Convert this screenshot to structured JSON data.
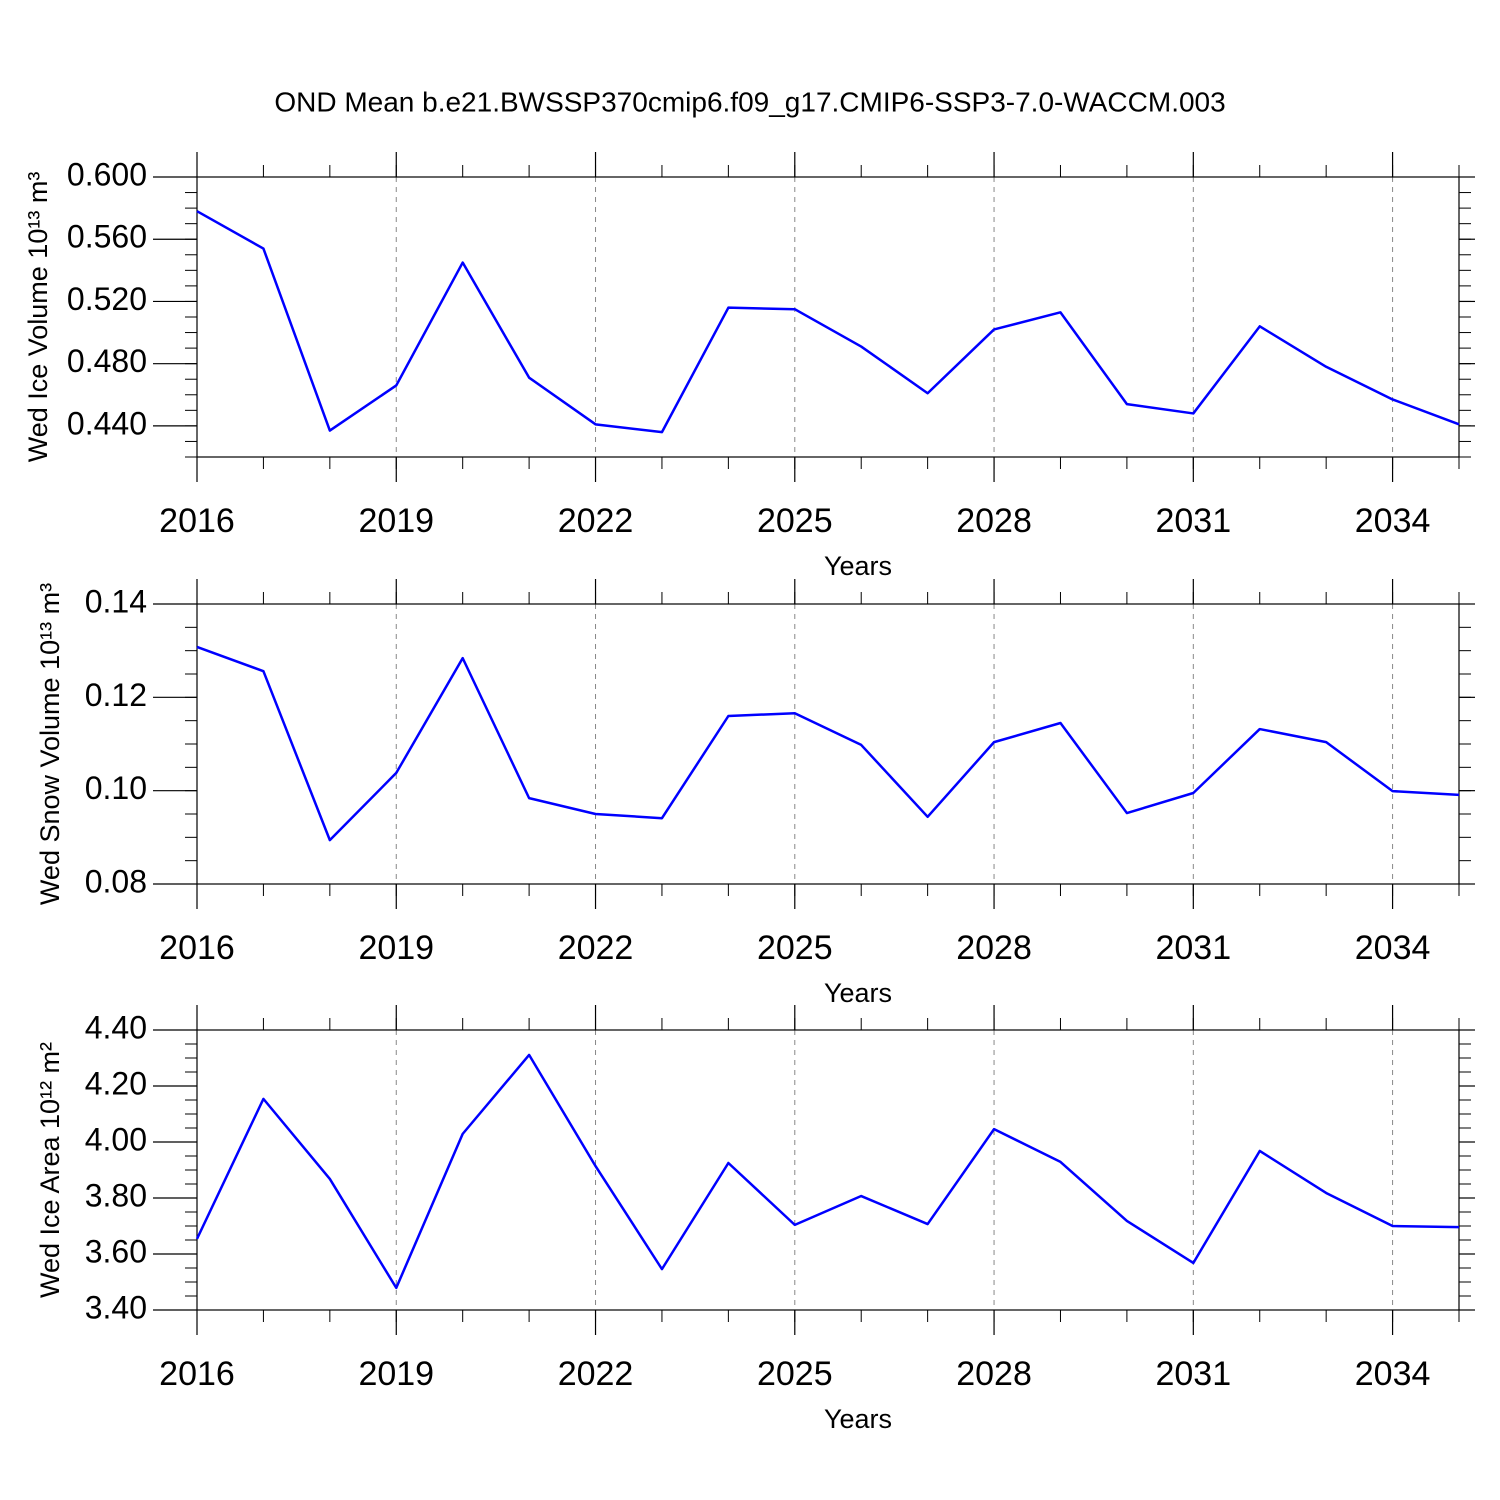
{
  "title": "OND Mean b.e21.BWSSP370cmip6.f09_g17.CMIP6-SSP3-7.0-WACCM.003",
  "chart_data": [
    {
      "type": "line",
      "ylabel": "Wed Ice Volume 10¹³ m³",
      "xlabel": "Years",
      "x": [
        2016,
        2017,
        2018,
        2019,
        2020,
        2021,
        2022,
        2023,
        2024,
        2025,
        2026,
        2027,
        2028,
        2029,
        2030,
        2031,
        2032,
        2033,
        2034,
        2035
      ],
      "series": [
        {
          "color": "#0000ff",
          "values": [
            0.578,
            0.554,
            0.437,
            0.466,
            0.545,
            0.471,
            0.441,
            0.436,
            0.516,
            0.515,
            0.491,
            0.461,
            0.502,
            0.513,
            0.454,
            0.448,
            0.504,
            0.478,
            0.457,
            0.441
          ]
        }
      ],
      "xlim": [
        2016,
        2035
      ],
      "xticks": [
        2016,
        2019,
        2022,
        2025,
        2028,
        2031,
        2034
      ],
      "ylim": [
        0.42,
        0.6
      ],
      "yticks": [
        {
          "value": 0.44,
          "label": "0.440"
        },
        {
          "value": 0.48,
          "label": "0.480"
        },
        {
          "value": 0.52,
          "label": "0.520"
        },
        {
          "value": 0.56,
          "label": "0.560"
        },
        {
          "value": 0.6,
          "label": "0.600"
        }
      ],
      "grid": "x"
    },
    {
      "type": "line",
      "ylabel": "Wed Snow Volume 10¹³ m³",
      "xlabel": "Years",
      "x": [
        2016,
        2017,
        2018,
        2019,
        2020,
        2021,
        2022,
        2023,
        2024,
        2025,
        2026,
        2027,
        2028,
        2029,
        2030,
        2031,
        2032,
        2033,
        2034,
        2035
      ],
      "series": [
        {
          "color": "#0000ff",
          "values": [
            0.1308,
            0.1256,
            0.0894,
            0.1038,
            0.1284,
            0.0984,
            0.095,
            0.0941,
            0.116,
            0.1166,
            0.1098,
            0.0944,
            0.1104,
            0.1145,
            0.0952,
            0.0995,
            0.1132,
            0.1104,
            0.0999,
            0.0991
          ]
        }
      ],
      "xlim": [
        2016,
        2035
      ],
      "xticks": [
        2016,
        2019,
        2022,
        2025,
        2028,
        2031,
        2034
      ],
      "ylim": [
        0.08,
        0.14
      ],
      "yticks": [
        0.08,
        {
          "value": 0.1,
          "label": "0.10"
        },
        0.12,
        0.14
      ],
      "grid": "x"
    },
    {
      "type": "line",
      "ylabel": "Wed Ice Area 10¹² m²",
      "xlabel": "Years",
      "x": [
        2016,
        2017,
        2018,
        2019,
        2020,
        2021,
        2022,
        2023,
        2024,
        2025,
        2026,
        2027,
        2028,
        2029,
        2030,
        2031,
        2032,
        2033,
        2034,
        2035
      ],
      "series": [
        {
          "color": "#0000ff",
          "values": [
            3.654,
            4.154,
            3.868,
            3.479,
            4.029,
            4.311,
            3.914,
            3.546,
            3.925,
            3.704,
            3.807,
            3.707,
            4.046,
            3.929,
            3.718,
            3.568,
            3.968,
            3.818,
            3.7,
            3.696
          ]
        }
      ],
      "xlim": [
        2016,
        2035
      ],
      "xticks": [
        2016,
        2019,
        2022,
        2025,
        2028,
        2031,
        2034
      ],
      "ylim": [
        3.4,
        4.4
      ],
      "yticks": [
        {
          "value": 3.4,
          "label": "3.40"
        },
        {
          "value": 3.6,
          "label": "3.60"
        },
        {
          "value": 3.8,
          "label": "3.80"
        },
        {
          "value": 4.0,
          "label": "4.00"
        },
        {
          "value": 4.2,
          "label": "4.20"
        },
        {
          "value": 4.4,
          "label": "4.40"
        }
      ],
      "grid": "x"
    }
  ]
}
